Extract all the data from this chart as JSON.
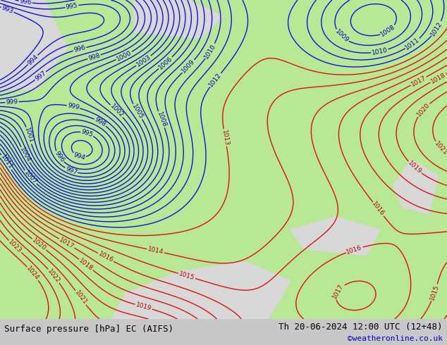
{
  "title_left": "Surface pressure [hPa] EC (AIFS)",
  "title_right": "Th 20-06-2024 12:00 UTC (12+48)",
  "copyright": "©weatheronline.co.uk",
  "bg_land_color": "#b8e896",
  "bg_sea_color": "#d8d8d8",
  "contour_color_blue": "#1010dd",
  "contour_color_red": "#dd1010",
  "label_color_blue": "#0000bb",
  "label_color_red": "#bb0000",
  "bottom_bar_color": "#c8c8c8",
  "footer_text_color": "#000000",
  "copyright_color": "#0000cc",
  "font_size_footer": 9,
  "font_size_labels": 6.5
}
